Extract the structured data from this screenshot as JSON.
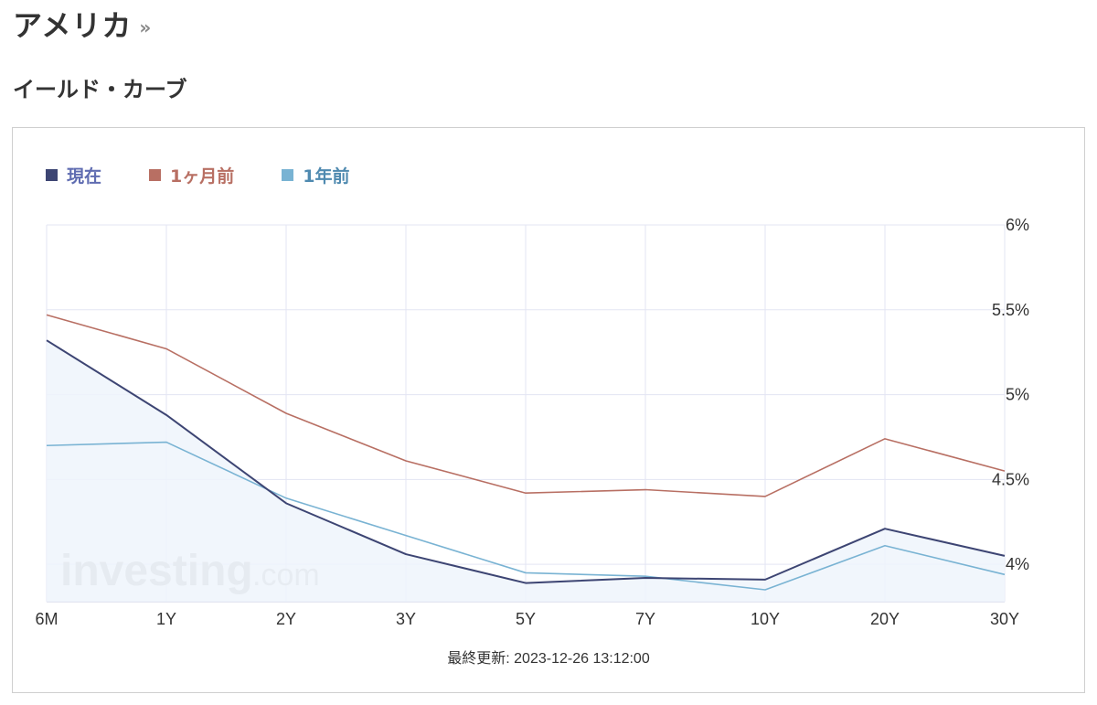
{
  "header": {
    "title": "アメリカ",
    "chevron": "»",
    "subtitle": "イールド・カーブ"
  },
  "watermark": "investing.com",
  "updated_label": "最終更新: 2023-12-26 13:12:00",
  "colors": {
    "current": "#3d4573",
    "month_ago": "#b86f63",
    "year_ago": "#79b3d3",
    "current_label": "#5f6cb1",
    "month_label": "#b86f63",
    "year_label": "#4f8ab0",
    "area_fill": "#eef4fc",
    "grid": "#e3e5f3"
  },
  "chart_data": {
    "type": "line",
    "categories": [
      "6M",
      "1Y",
      "2Y",
      "3Y",
      "5Y",
      "7Y",
      "10Y",
      "20Y",
      "30Y"
    ],
    "ylim": [
      3.78,
      6
    ],
    "yticks": [
      4,
      4.5,
      5,
      5.5,
      6
    ],
    "ytick_labels": [
      "4%",
      "4.5%",
      "5%",
      "5.5%",
      "6%"
    ],
    "y_axis_position": "right",
    "grid": true,
    "legend_position": "top-left",
    "series": [
      {
        "name": "現在",
        "values": [
          5.32,
          4.88,
          4.36,
          4.06,
          3.89,
          3.92,
          3.91,
          4.21,
          4.05
        ]
      },
      {
        "name": "1ヶ月前",
        "values": [
          5.47,
          5.27,
          4.89,
          4.61,
          4.42,
          4.44,
          4.4,
          4.74,
          4.55
        ]
      },
      {
        "name": "1年前",
        "values": [
          4.7,
          4.72,
          4.39,
          4.17,
          3.95,
          3.93,
          3.85,
          4.11,
          3.94
        ]
      }
    ]
  }
}
